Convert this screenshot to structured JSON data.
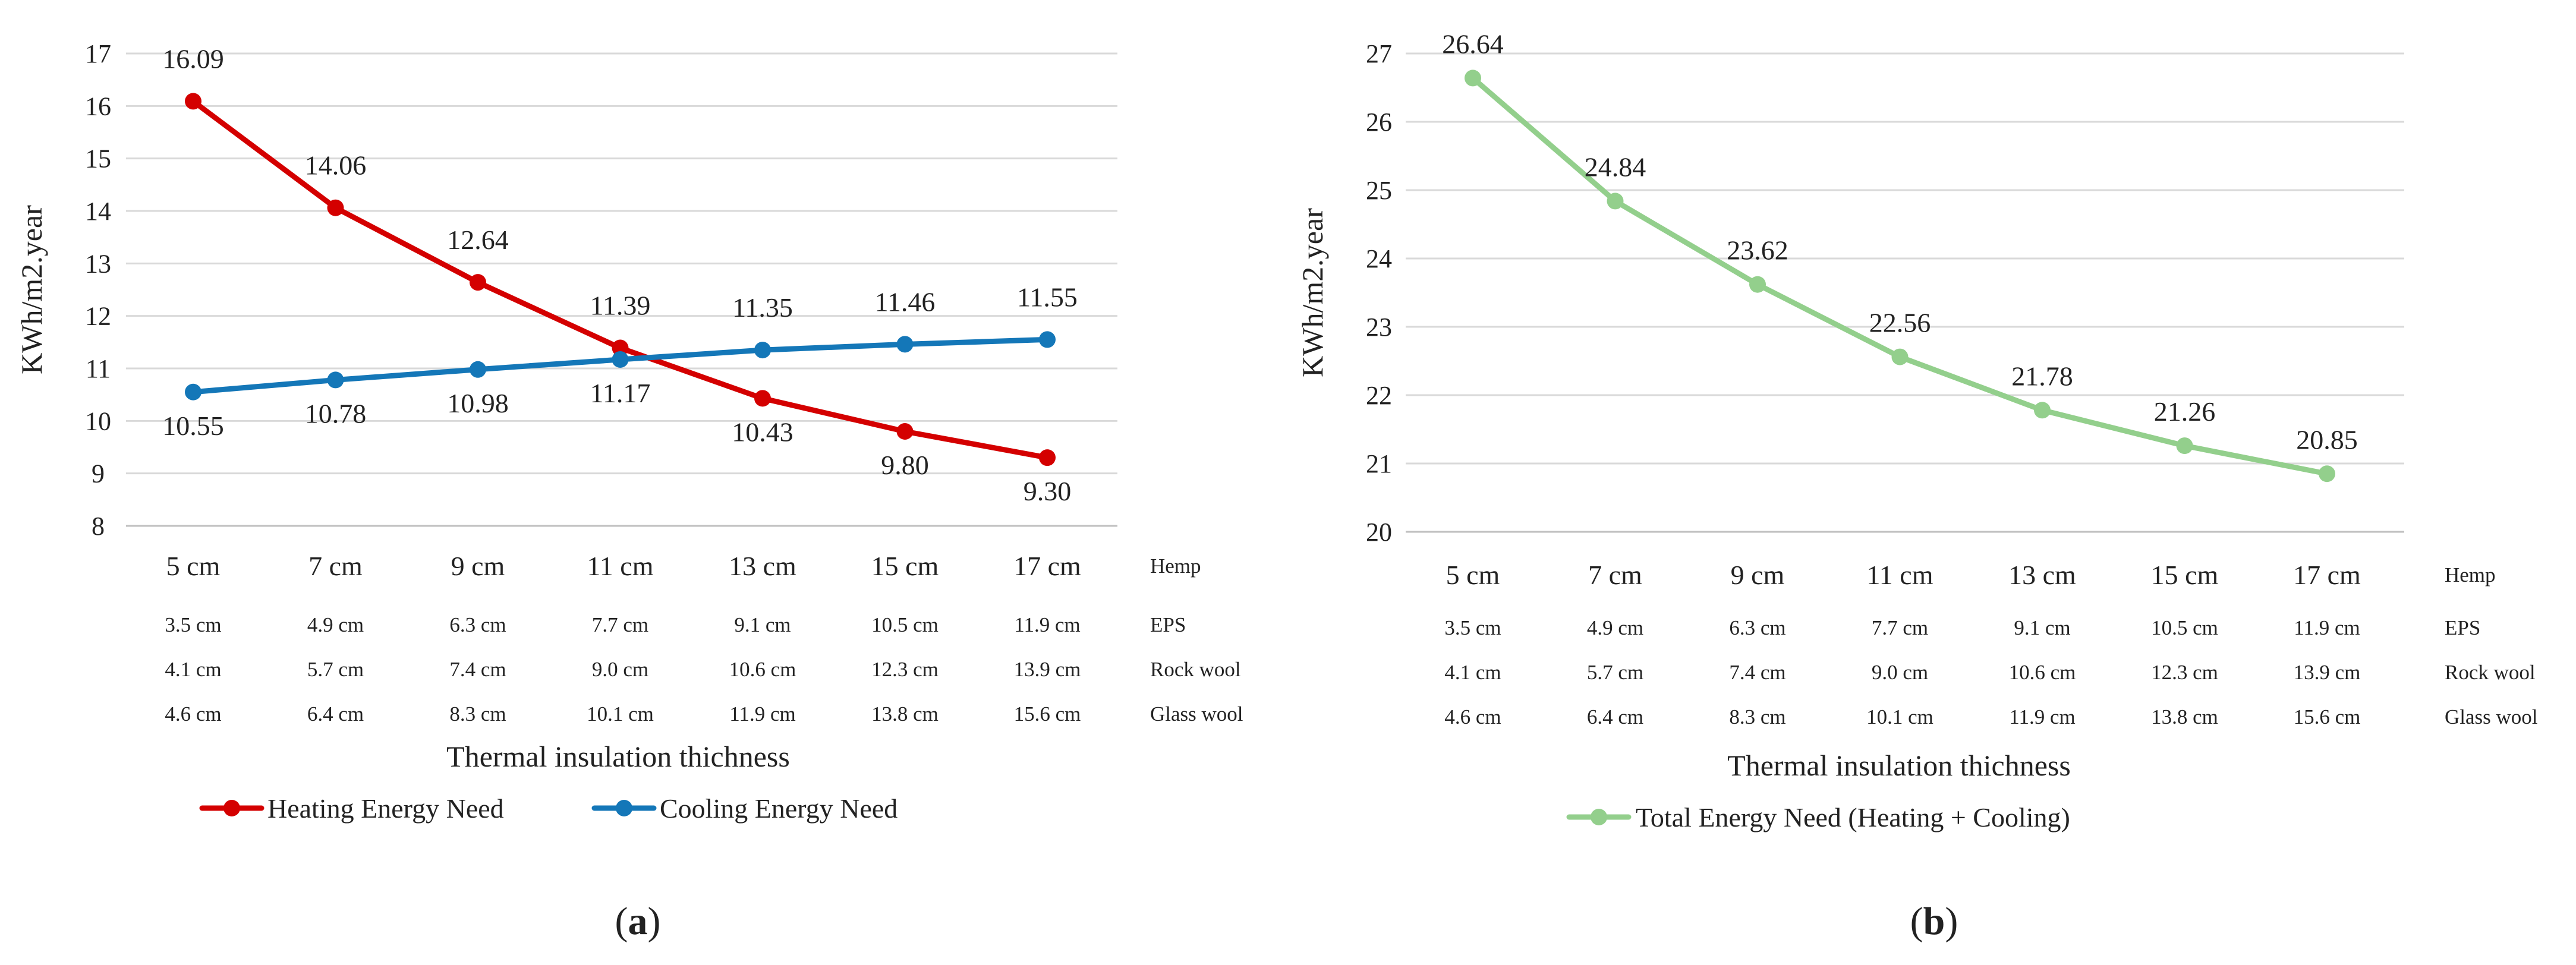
{
  "chart_data": [
    {
      "id": "a",
      "type": "line",
      "panel_label": "(a)",
      "panel_letter": "a",
      "ylabel": "KWh/m2.year",
      "xlabel": "Thermal insulation thichness",
      "ylim": [
        8,
        17
      ],
      "yticks": [
        8,
        9,
        10,
        11,
        12,
        13,
        14,
        15,
        16,
        17
      ],
      "categories": [
        "5 cm",
        "7 cm",
        "9 cm",
        "11 cm",
        "13 cm",
        "15 cm",
        "17 cm"
      ],
      "category_row_label": "Hemp",
      "extra_rows": [
        {
          "label": "EPS",
          "values": [
            "3.5 cm",
            "4.9 cm",
            "6.3 cm",
            "7.7 cm",
            "9.1 cm",
            "10.5 cm",
            "11.9 cm"
          ]
        },
        {
          "label": "Rock wool",
          "values": [
            "4.1 cm",
            "5.7 cm",
            "7.4 cm",
            "9.0 cm",
            "10.6 cm",
            "12.3 cm",
            "13.9 cm"
          ]
        },
        {
          "label": "Glass wool",
          "values": [
            "4.6 cm",
            "6.4 cm",
            "8.3 cm",
            "10.1 cm",
            "11.9 cm",
            "13.8 cm",
            "15.6 cm"
          ]
        }
      ],
      "series": [
        {
          "name": "Heating Energy Need",
          "color": "#d40000",
          "values": [
            16.09,
            14.06,
            12.64,
            11.39,
            10.43,
            9.8,
            9.3
          ],
          "labels": [
            "16.09",
            "14.06",
            "12.64",
            "11.39",
            "10.43",
            "9.80",
            "9.30"
          ],
          "label_pos": [
            "above",
            "above",
            "above",
            "above",
            "below",
            "below",
            "below"
          ]
        },
        {
          "name": "Cooling Energy Need",
          "color": "#1477b8",
          "values": [
            10.55,
            10.78,
            10.98,
            11.17,
            11.35,
            11.46,
            11.55
          ],
          "labels": [
            "10.55",
            "10.78",
            "10.98",
            "11.17",
            "11.35",
            "11.46",
            "11.55"
          ],
          "label_pos": [
            "below",
            "below",
            "below",
            "below",
            "above",
            "above",
            "above"
          ]
        }
      ]
    },
    {
      "id": "b",
      "type": "line",
      "panel_label": "(b)",
      "panel_letter": "b",
      "ylabel": "KWh/m2.year",
      "xlabel": "Thermal insulation thichness",
      "ylim": [
        20,
        27
      ],
      "yticks": [
        20,
        21,
        22,
        23,
        24,
        25,
        26,
        27
      ],
      "categories": [
        "5 cm",
        "7 cm",
        "9 cm",
        "11 cm",
        "13 cm",
        "15 cm",
        "17 cm"
      ],
      "category_row_label": "Hemp",
      "extra_rows": [
        {
          "label": "EPS",
          "values": [
            "3.5 cm",
            "4.9 cm",
            "6.3 cm",
            "7.7 cm",
            "9.1 cm",
            "10.5 cm",
            "11.9 cm"
          ]
        },
        {
          "label": "Rock wool",
          "values": [
            "4.1 cm",
            "5.7 cm",
            "7.4 cm",
            "9.0 cm",
            "10.6 cm",
            "12.3 cm",
            "13.9 cm"
          ]
        },
        {
          "label": "Glass wool",
          "values": [
            "4.6 cm",
            "6.4 cm",
            "8.3 cm",
            "10.1 cm",
            "11.9 cm",
            "13.8 cm",
            "15.6 cm"
          ]
        }
      ],
      "series": [
        {
          "name": "Total Energy Need (Heating + Cooling)",
          "color": "#93cf8c",
          "values": [
            26.64,
            24.84,
            23.62,
            22.56,
            21.78,
            21.26,
            20.85
          ],
          "labels": [
            "26.64",
            "24.84",
            "23.62",
            "22.56",
            "21.78",
            "21.26",
            "20.85"
          ],
          "label_pos": [
            "above",
            "above",
            "above",
            "above",
            "above",
            "above",
            "above"
          ]
        }
      ]
    }
  ]
}
